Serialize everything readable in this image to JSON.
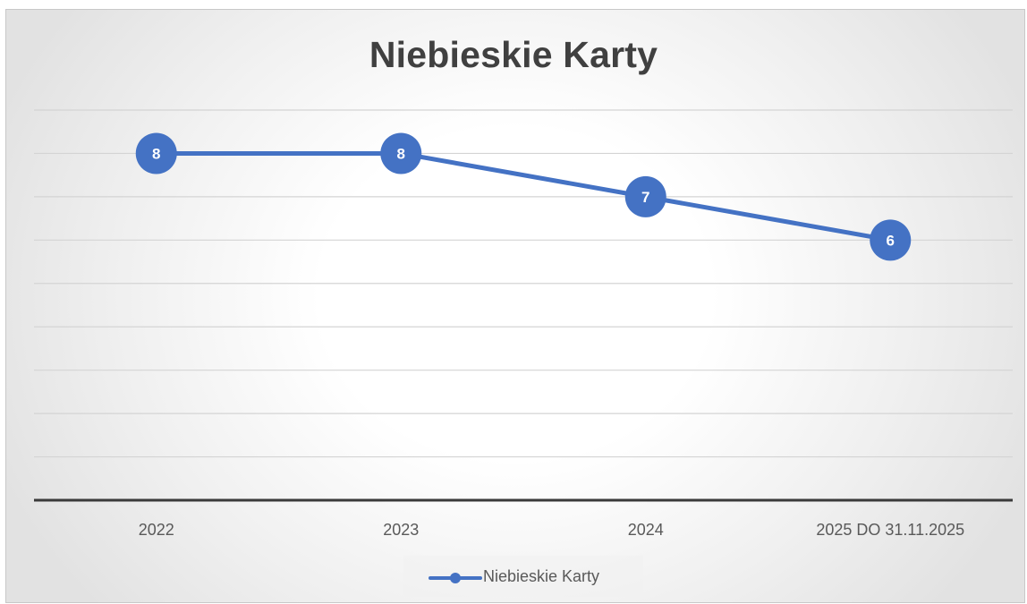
{
  "chart_data": {
    "type": "line",
    "title": "Niebieskie Karty",
    "xlabel": "",
    "ylabel": "",
    "categories": [
      "2022",
      "2023",
      "2024",
      "2025 DO 31.11.2025"
    ],
    "series": [
      {
        "name": "Niebieskie Karty",
        "values": [
          8,
          8,
          7,
          6
        ],
        "color": "#4472C4"
      }
    ],
    "ylim": [
      0,
      9
    ],
    "grid": true,
    "data_labels": true,
    "legend_position": "bottom"
  }
}
